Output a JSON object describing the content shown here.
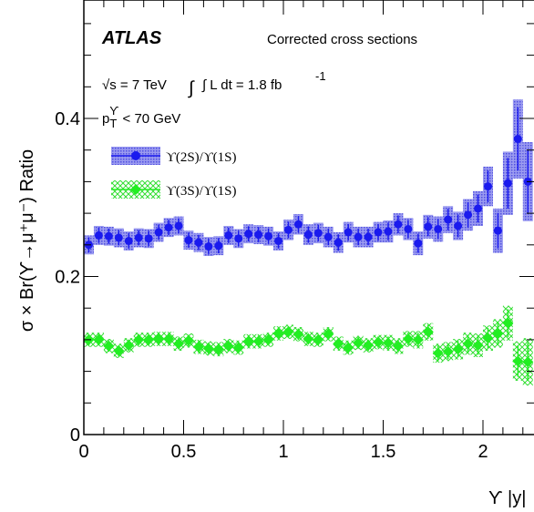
{
  "chart_data": {
    "type": "scatter",
    "experiment": "ATLAS",
    "subtitle": "Corrected cross sections",
    "energy_label": "√s = 7 TeV",
    "lumi_label": "∫ L dt = 1.8 fb",
    "lumi_exponent": "-1",
    "cut_label": "p",
    "cut_sub": "T",
    "cut_sup": "ϒ",
    "cut_rest": " < 70 GeV",
    "xlabel": "ϒ |y|",
    "ylabel": "σ × Br(ϒ→μ⁺μ⁻) Ratio",
    "xlim": [
      0,
      2.25
    ],
    "ylim": [
      0,
      0.56
    ],
    "x_ticks": [
      0,
      0.5,
      1,
      1.5,
      2
    ],
    "x_tick_labels": [
      "0",
      "0.5",
      "1",
      "1.5",
      "2"
    ],
    "y_ticks": [
      0,
      0.2,
      0.4
    ],
    "y_tick_labels": [
      "0",
      "0.2",
      "0.4"
    ],
    "legend_position": "top-left",
    "colors": {
      "series1": "#1a1aee",
      "band1": "#6e6ee8",
      "series2": "#22ee22",
      "band2": "#55ee55"
    },
    "series": [
      {
        "name": "ϒ(2S)/ϒ(1S)",
        "x": [
          0.025,
          0.075,
          0.125,
          0.175,
          0.225,
          0.275,
          0.325,
          0.375,
          0.425,
          0.475,
          0.525,
          0.575,
          0.625,
          0.675,
          0.725,
          0.775,
          0.825,
          0.875,
          0.925,
          0.975,
          1.025,
          1.075,
          1.125,
          1.175,
          1.225,
          1.275,
          1.325,
          1.375,
          1.425,
          1.475,
          1.525,
          1.575,
          1.625,
          1.675,
          1.725,
          1.775,
          1.825,
          1.875,
          1.925,
          1.975,
          2.025,
          2.075,
          2.125,
          2.175,
          2.225
        ],
        "values": [
          0.24,
          0.252,
          0.251,
          0.249,
          0.245,
          0.249,
          0.248,
          0.256,
          0.262,
          0.264,
          0.246,
          0.243,
          0.238,
          0.239,
          0.252,
          0.248,
          0.254,
          0.253,
          0.251,
          0.245,
          0.259,
          0.266,
          0.253,
          0.255,
          0.25,
          0.243,
          0.256,
          0.25,
          0.25,
          0.256,
          0.257,
          0.266,
          0.26,
          0.242,
          0.263,
          0.26,
          0.272,
          0.264,
          0.278,
          0.286,
          0.314,
          0.258,
          0.318,
          0.374,
          0.32
        ],
        "band": [
          0.012,
          0.012,
          0.012,
          0.012,
          0.012,
          0.012,
          0.012,
          0.012,
          0.012,
          0.012,
          0.012,
          0.012,
          0.012,
          0.012,
          0.012,
          0.012,
          0.012,
          0.012,
          0.012,
          0.012,
          0.013,
          0.013,
          0.013,
          0.013,
          0.013,
          0.013,
          0.013,
          0.013,
          0.013,
          0.013,
          0.014,
          0.014,
          0.014,
          0.015,
          0.015,
          0.016,
          0.017,
          0.018,
          0.02,
          0.022,
          0.025,
          0.028,
          0.04,
          0.05,
          0.05
        ]
      },
      {
        "name": "ϒ(3S)/ϒ(1S)",
        "x": [
          0.025,
          0.075,
          0.125,
          0.175,
          0.225,
          0.275,
          0.325,
          0.375,
          0.425,
          0.475,
          0.525,
          0.575,
          0.625,
          0.675,
          0.725,
          0.775,
          0.825,
          0.875,
          0.925,
          0.975,
          1.025,
          1.075,
          1.125,
          1.175,
          1.225,
          1.275,
          1.325,
          1.375,
          1.425,
          1.475,
          1.525,
          1.575,
          1.625,
          1.675,
          1.725,
          1.775,
          1.825,
          1.875,
          1.925,
          1.975,
          2.025,
          2.075,
          2.125,
          2.175,
          2.225
        ],
        "values": [
          0.12,
          0.12,
          0.112,
          0.106,
          0.113,
          0.12,
          0.12,
          0.121,
          0.121,
          0.115,
          0.119,
          0.111,
          0.109,
          0.108,
          0.112,
          0.11,
          0.118,
          0.118,
          0.12,
          0.128,
          0.13,
          0.127,
          0.121,
          0.12,
          0.127,
          0.115,
          0.11,
          0.116,
          0.113,
          0.117,
          0.116,
          0.112,
          0.121,
          0.12,
          0.13,
          0.103,
          0.105,
          0.108,
          0.115,
          0.113,
          0.122,
          0.128,
          0.141,
          0.093,
          0.092
        ],
        "band": [
          0.009,
          0.009,
          0.009,
          0.009,
          0.009,
          0.009,
          0.009,
          0.009,
          0.009,
          0.009,
          0.009,
          0.009,
          0.009,
          0.009,
          0.009,
          0.009,
          0.009,
          0.009,
          0.009,
          0.009,
          0.009,
          0.009,
          0.009,
          0.009,
          0.009,
          0.009,
          0.009,
          0.009,
          0.009,
          0.009,
          0.01,
          0.01,
          0.01,
          0.011,
          0.011,
          0.012,
          0.012,
          0.013,
          0.014,
          0.015,
          0.016,
          0.018,
          0.022,
          0.025,
          0.03
        ]
      }
    ]
  }
}
